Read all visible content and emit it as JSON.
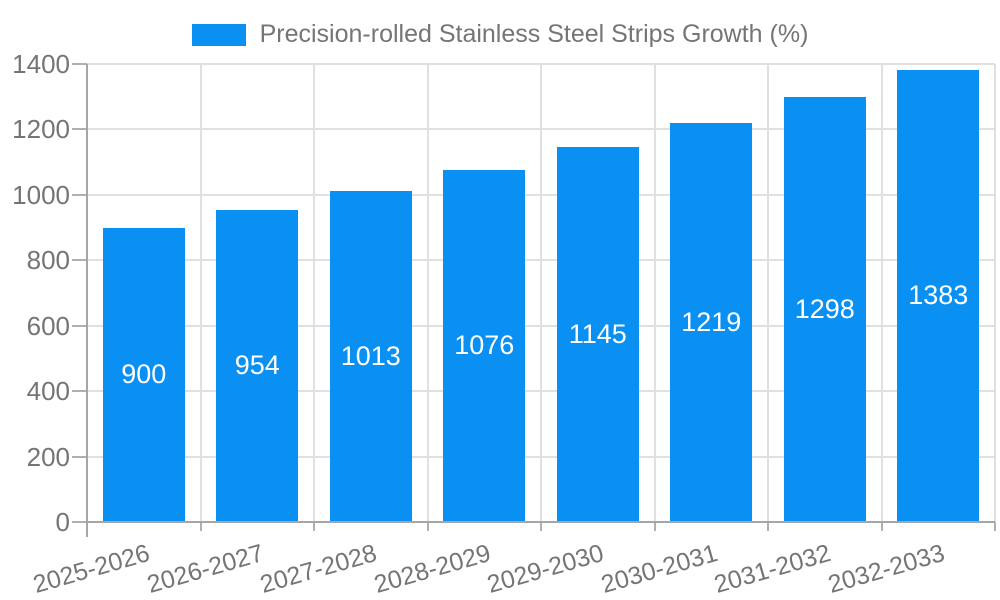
{
  "chart_data": {
    "type": "bar",
    "title": "Precision-rolled Stainless Steel Strips Growth (%)",
    "categories": [
      "2025-2026",
      "2026-2027",
      "2027-2028",
      "2028-2029",
      "2029-2030",
      "2030-2031",
      "2031-2032",
      "2032-2033"
    ],
    "values": [
      900,
      954,
      1013,
      1076,
      1145,
      1219,
      1298,
      1383
    ],
    "xlabel": "",
    "ylabel": "",
    "ylim": [
      0,
      1400
    ],
    "yticks": [
      0,
      200,
      400,
      600,
      800,
      1000,
      1200,
      1400
    ],
    "legend_position": "top",
    "grid": true,
    "bar_labels_visible": true,
    "x_tick_rotation_deg": -16
  },
  "colors": {
    "bar": "#0a90f2",
    "bar_label_text": "#ffffff",
    "axis_text": "#757575",
    "legend_text": "#757575",
    "gridline": "#e0e0e0",
    "tick": "#b0b0b0",
    "axis_line": "#a6a6a6",
    "background": "#ffffff"
  }
}
